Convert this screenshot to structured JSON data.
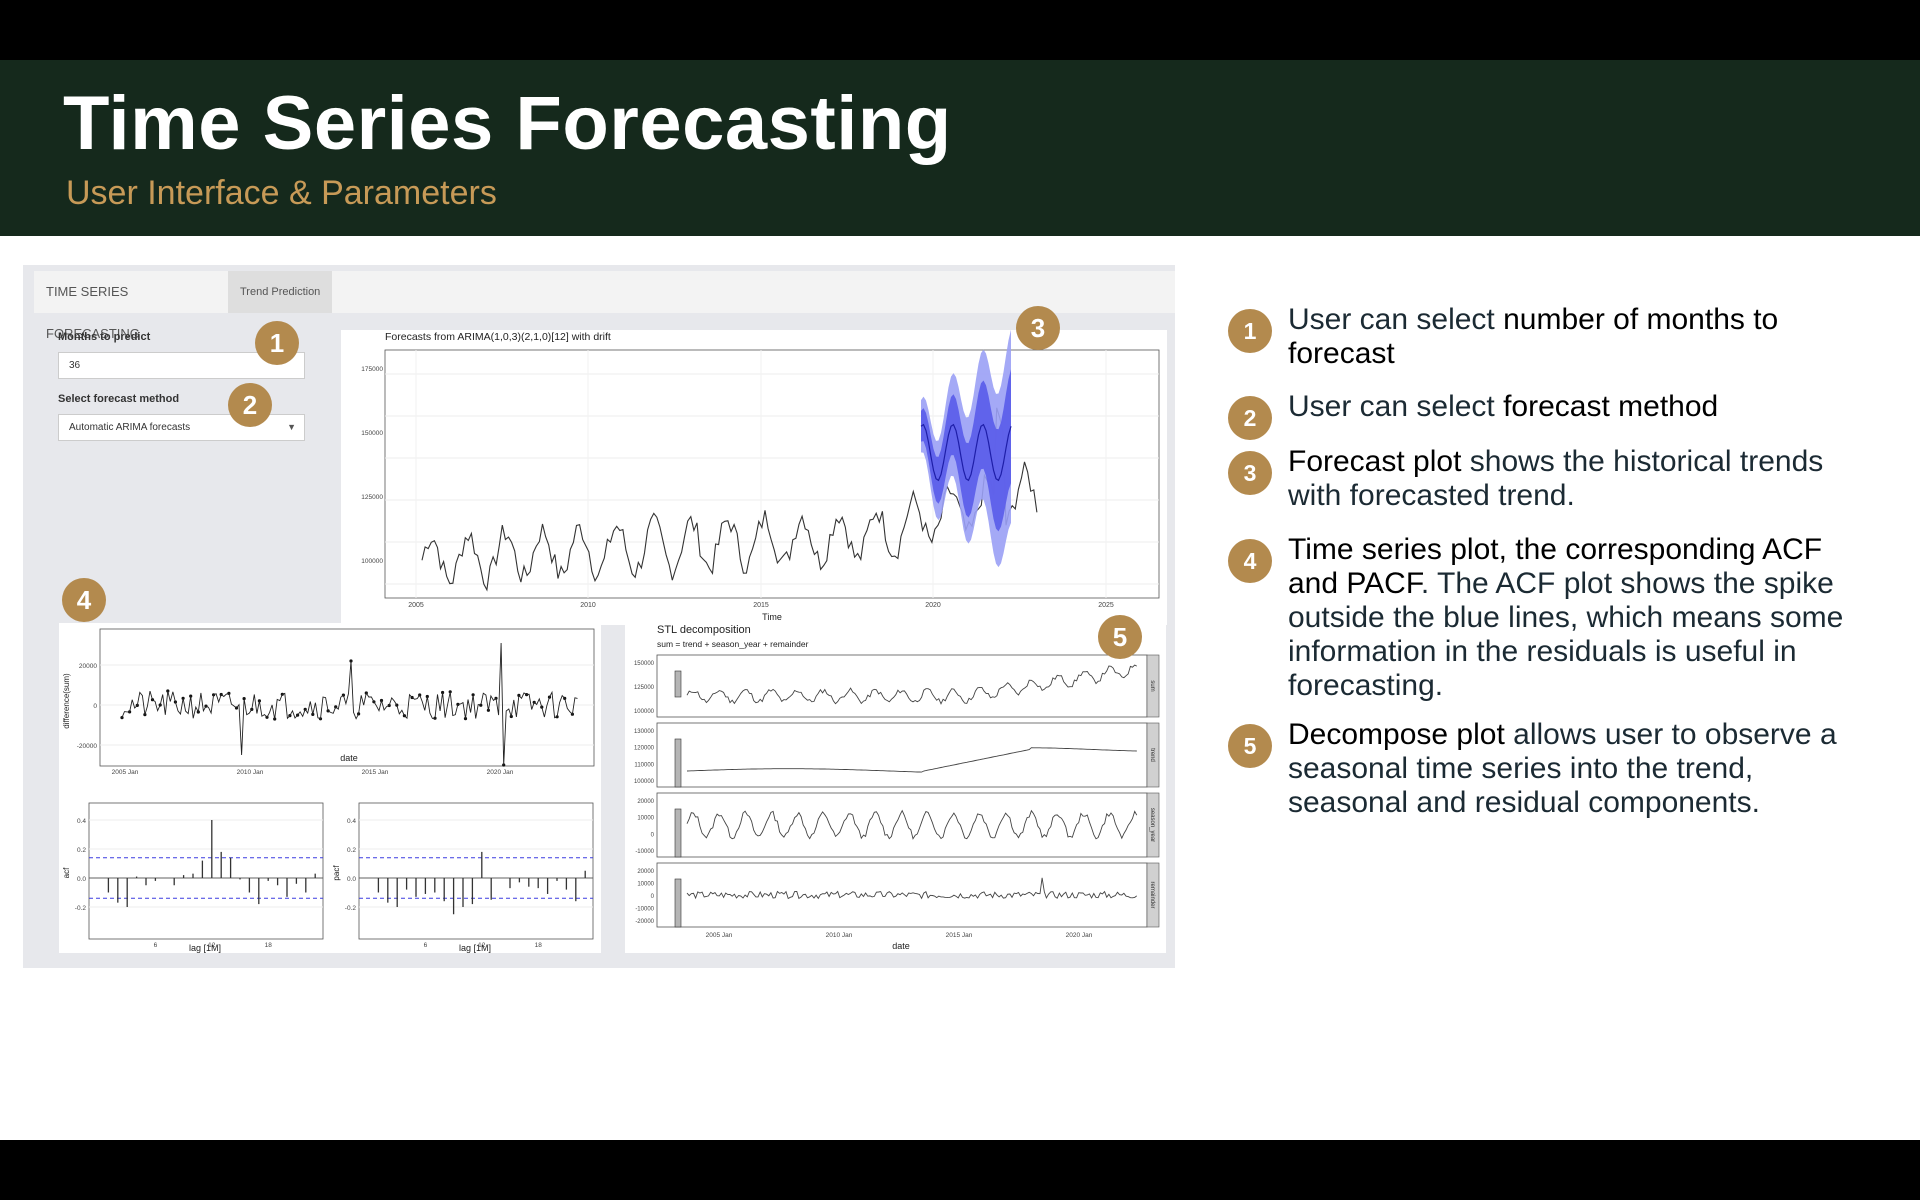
{
  "header": {
    "title": "Time Series Forecasting",
    "subtitle": "User Interface & Parameters"
  },
  "app": {
    "tabs": [
      "TIME SERIES FORECASTING",
      "Trend Prediction"
    ],
    "months_label": "Months to predict",
    "months_value": "36",
    "method_label": "Select forecast method",
    "method_value": "Automatic ARIMA forecasts"
  },
  "forecast_plot": {
    "title": "Forecasts from ARIMA(1,0,3)(2,1,0)[12] with drift",
    "xlabel": "Time",
    "x_ticks": [
      "2005",
      "2010",
      "2015",
      "2020",
      "2025"
    ],
    "y_ticks": [
      "100000",
      "125000",
      "150000",
      "175000"
    ]
  },
  "diff_plot": {
    "ylabel": "difference(sum)",
    "xlabel": "date",
    "x_ticks": [
      "2005 Jan",
      "2010 Jan",
      "2015 Jan",
      "2020 Jan"
    ],
    "y_ticks": [
      "20000",
      "0",
      "-20000"
    ]
  },
  "acf_plot": {
    "ylabel": "acf",
    "xlabel": "lag [1M]",
    "x_ticks": [
      "6",
      "12",
      "18"
    ],
    "y_ticks": [
      "0.4",
      "0.2",
      "0.0",
      "-0.2"
    ]
  },
  "pacf_plot": {
    "ylabel": "pacf",
    "xlabel": "lag [1M]",
    "x_ticks": [
      "6",
      "12",
      "18"
    ],
    "y_ticks": [
      "0.4",
      "0.2",
      "0.0",
      "-0.2"
    ]
  },
  "stl_plot": {
    "title": "STL decomposition",
    "subtitle": "sum = trend + season_year + remainder",
    "xlabel": "date",
    "x_ticks": [
      "2005 Jan",
      "2010 Jan",
      "2015 Jan",
      "2020 Jan"
    ],
    "strips": [
      "sum",
      "trend",
      "season_year",
      "remainder"
    ],
    "y_ticks_sum": [
      "150000",
      "125000",
      "100000"
    ],
    "y_ticks_trend": [
      "130000",
      "120000",
      "110000",
      "100000"
    ],
    "y_ticks_season": [
      "20000",
      "10000",
      "0",
      "-10000"
    ],
    "y_ticks_rem": [
      "20000",
      "10000",
      "0",
      "-10000",
      "-20000"
    ]
  },
  "badges": [
    "1",
    "2",
    "3",
    "4",
    "5"
  ],
  "points": [
    {
      "num": "1",
      "pre": "User can select ",
      "bold": "number of months to forecast",
      "post": ""
    },
    {
      "num": "2",
      "pre": "User can select ",
      "bold": "forecast method",
      "post": ""
    },
    {
      "num": "3",
      "pre": "",
      "bold": "Forecast plot",
      "post": " shows the historical trends with forecasted trend."
    },
    {
      "num": "4",
      "pre": "",
      "bold": "Time series plot, the corresponding ACF and PACF",
      "post": ". The ACF plot shows the spike outside the blue lines, which means some information in the residuals is useful in forecasting."
    },
    {
      "num": "5",
      "pre": "",
      "bold": "Decompose plot",
      "post": " allows user to observe a seasonal time series into the trend, seasonal and residual components."
    }
  ],
  "colors": {
    "header_bg": "#15291c",
    "accent": "#b38a4e",
    "subtitle": "#c79a57",
    "forecast": "#3a3ae0"
  }
}
